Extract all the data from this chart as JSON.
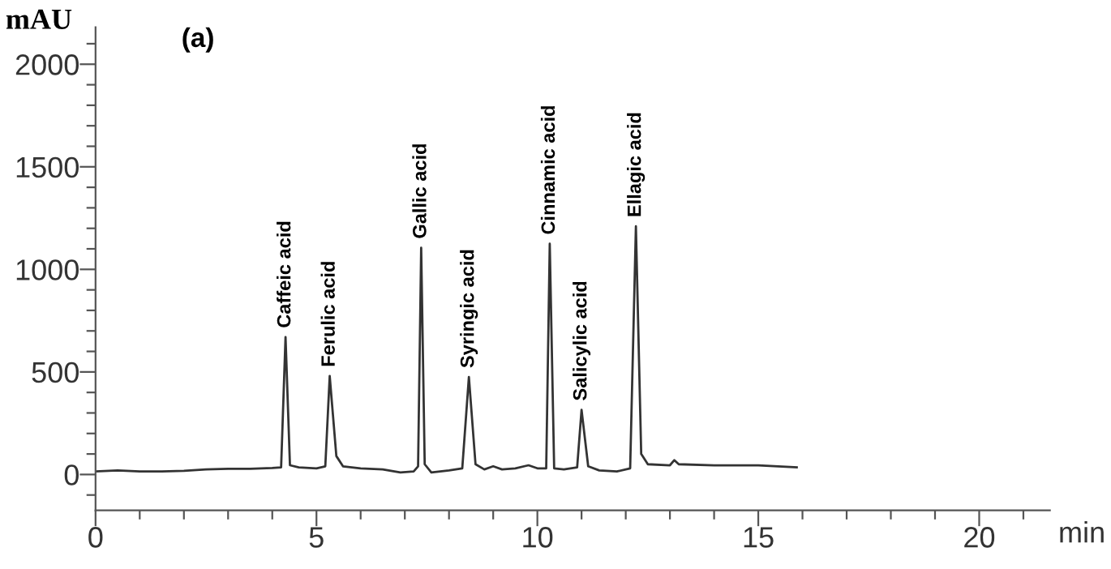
{
  "chart_data": {
    "type": "line",
    "title": "(a)",
    "xlabel": "min",
    "ylabel": "mAU",
    "x": [
      0,
      0.5,
      1,
      1.5,
      2,
      2.5,
      3,
      3.5,
      4,
      4.2,
      4.3,
      4.4,
      4.6,
      5.0,
      5.2,
      5.3,
      5.45,
      5.6,
      6,
      6.5,
      6.9,
      7.2,
      7.3,
      7.37,
      7.45,
      7.6,
      8.0,
      8.3,
      8.45,
      8.6,
      8.8,
      9.0,
      9.2,
      9.5,
      9.8,
      10.0,
      10.2,
      10.28,
      10.38,
      10.6,
      10.9,
      11.0,
      11.15,
      11.4,
      11.8,
      12.1,
      12.23,
      12.35,
      12.5,
      13.0,
      13.1,
      13.2,
      14,
      15,
      15.87
    ],
    "series": [
      {
        "color": "#333333",
        "values": [
          15,
          20,
          15,
          15,
          18,
          25,
          28,
          28,
          32,
          35,
          670,
          45,
          35,
          30,
          40,
          480,
          90,
          40,
          30,
          25,
          10,
          15,
          40,
          1105,
          50,
          10,
          20,
          30,
          475,
          50,
          25,
          40,
          25,
          30,
          45,
          30,
          30,
          1125,
          30,
          25,
          35,
          315,
          40,
          20,
          15,
          30,
          1210,
          100,
          50,
          45,
          70,
          50,
          45,
          45,
          35
        ]
      }
    ],
    "annotations": [
      {
        "text": "Caffeic acid",
        "x": 4.3,
        "y": 670
      },
      {
        "text": "Ferulic acid",
        "x": 5.3,
        "y": 480
      },
      {
        "text": "Gallic acid",
        "x": 7.37,
        "y": 1105
      },
      {
        "text": "Syringic acid",
        "x": 8.45,
        "y": 475
      },
      {
        "text": "Cinnamic acid",
        "x": 10.28,
        "y": 1125
      },
      {
        "text": "Salicylic acid",
        "x": 11.0,
        "y": 315
      },
      {
        "text": "Ellagic acid",
        "x": 12.23,
        "y": 1210
      }
    ],
    "xlim": [
      0,
      21.6
    ],
    "ylim": [
      -175,
      2180
    ],
    "xticks": [
      0,
      {
        "value": 1,
        "label": null
      },
      {
        "value": 2,
        "label": null
      },
      {
        "value": 3,
        "label": null
      },
      {
        "value": 4,
        "label": null
      },
      5,
      {
        "value": 6,
        "label": null
      },
      {
        "value": 7,
        "label": null
      },
      {
        "value": 8,
        "label": null
      },
      {
        "value": 9,
        "label": null
      },
      10,
      {
        "value": 11,
        "label": null
      },
      {
        "value": 12,
        "label": null
      },
      {
        "value": 13,
        "label": null
      },
      {
        "value": 14,
        "label": null
      },
      15,
      {
        "value": 16,
        "label": null
      },
      {
        "value": 17,
        "label": null
      },
      {
        "value": 18,
        "label": null
      },
      {
        "value": 19,
        "label": null
      },
      20,
      {
        "value": 21,
        "label": null
      }
    ],
    "yticks": [
      {
        "value": -100,
        "label": null
      },
      0,
      {
        "value": 100,
        "label": null
      },
      {
        "value": 200,
        "label": null
      },
      {
        "value": 300,
        "label": null
      },
      {
        "value": 400,
        "label": null
      },
      500,
      {
        "value": 600,
        "label": null
      },
      {
        "value": 700,
        "label": null
      },
      {
        "value": 800,
        "label": null
      },
      {
        "value": 900,
        "label": null
      },
      1000,
      {
        "value": 1100,
        "label": null
      },
      {
        "value": 1200,
        "label": null
      },
      {
        "value": 1300,
        "label": null
      },
      {
        "value": 1400,
        "label": null
      },
      1500,
      {
        "value": 1600,
        "label": null
      },
      {
        "value": 1700,
        "label": null
      },
      {
        "value": 1800,
        "label": null
      },
      {
        "value": 1900,
        "label": null
      },
      2000,
      {
        "value": 2100,
        "label": null
      }
    ],
    "grid": false,
    "legend": false,
    "marker": "none",
    "line_style": "solid"
  }
}
